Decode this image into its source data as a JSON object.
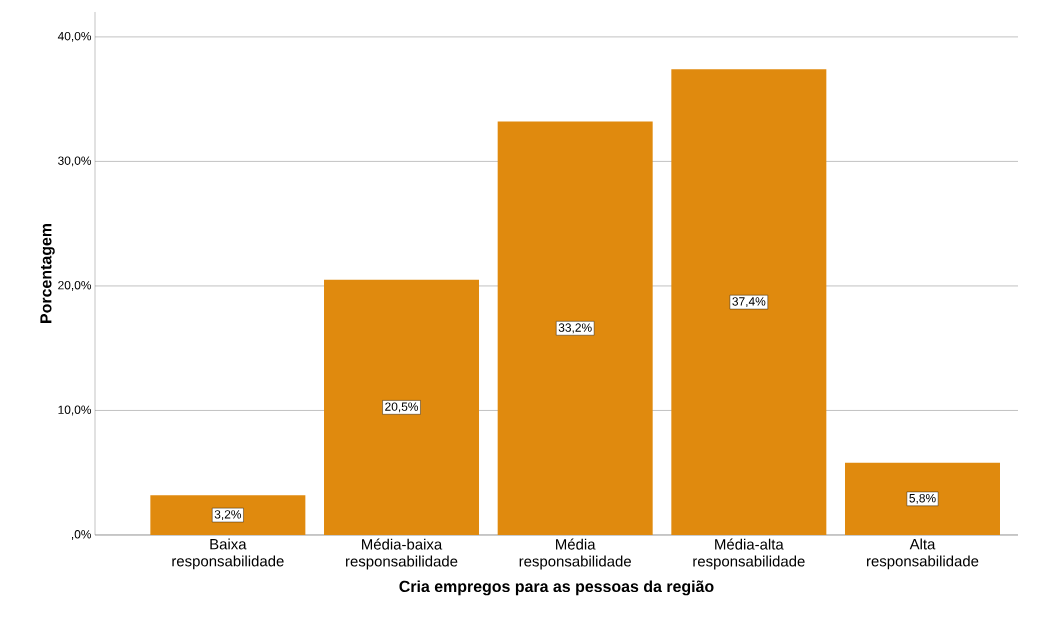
{
  "chart_data": {
    "type": "bar",
    "xlabel": "Cria empregos para as pessoas da região",
    "ylabel": "Porcentagem",
    "categories": [
      "Baixa responsabilidade",
      "Média-baixa responsabilidade",
      "Média responsabilidade",
      "Média-alta responsabilidade",
      "Alta responsabilidade"
    ],
    "values": [
      3.2,
      20.5,
      33.2,
      37.4,
      5.8
    ],
    "value_labels": [
      "3,2%",
      "20,5%",
      "33,2%",
      "37,4%",
      "5,8%"
    ],
    "color": "#e08a0e",
    "ylim": [
      0,
      42
    ],
    "yticks": [
      {
        "value": 0,
        "label": ",0%"
      },
      {
        "value": 10,
        "label": "10,0%"
      },
      {
        "value": 20,
        "label": "20,0%"
      },
      {
        "value": 30,
        "label": "30,0%"
      },
      {
        "value": 40,
        "label": "40,0%"
      }
    ],
    "grid": "y"
  }
}
